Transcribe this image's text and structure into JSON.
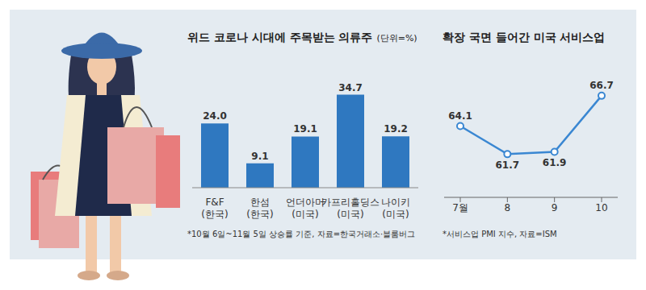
{
  "chart_data": [
    {
      "type": "bar",
      "title": "위드 코로나 시대에 주목받는 의류주",
      "unit_note": "(단위=%)",
      "categories": [
        "F&F\n(한국)",
        "한섬\n(한국)",
        "언더아머\n(미국)",
        "카프리홀딩스\n(미국)",
        "나이키\n(미국)"
      ],
      "values": [
        24.0,
        9.1,
        19.1,
        34.7,
        19.2
      ],
      "value_labels": [
        "24.0",
        "9.1",
        "19.1",
        "34.7",
        "19.2"
      ],
      "color": "#2f78c0",
      "ylim": [
        0,
        40
      ],
      "data_labels": true,
      "tick_labels": "x",
      "grid": false,
      "note": "*10월 6일~11월 5일 상승률 기준, 자료=한국거래소·블룸버그"
    },
    {
      "type": "line",
      "title": "확장 국면 들어간 미국 서비스업",
      "categories": [
        "7월",
        "8",
        "9",
        "10"
      ],
      "values": [
        64.1,
        61.7,
        61.9,
        66.7
      ],
      "color": "#3a87d2",
      "marker": "circle",
      "ylim": [
        58,
        68
      ],
      "data_labels": true,
      "tick_labels": "x",
      "grid": false,
      "note": "*서비스업 PMI 지수, 자료=ISM"
    }
  ]
}
